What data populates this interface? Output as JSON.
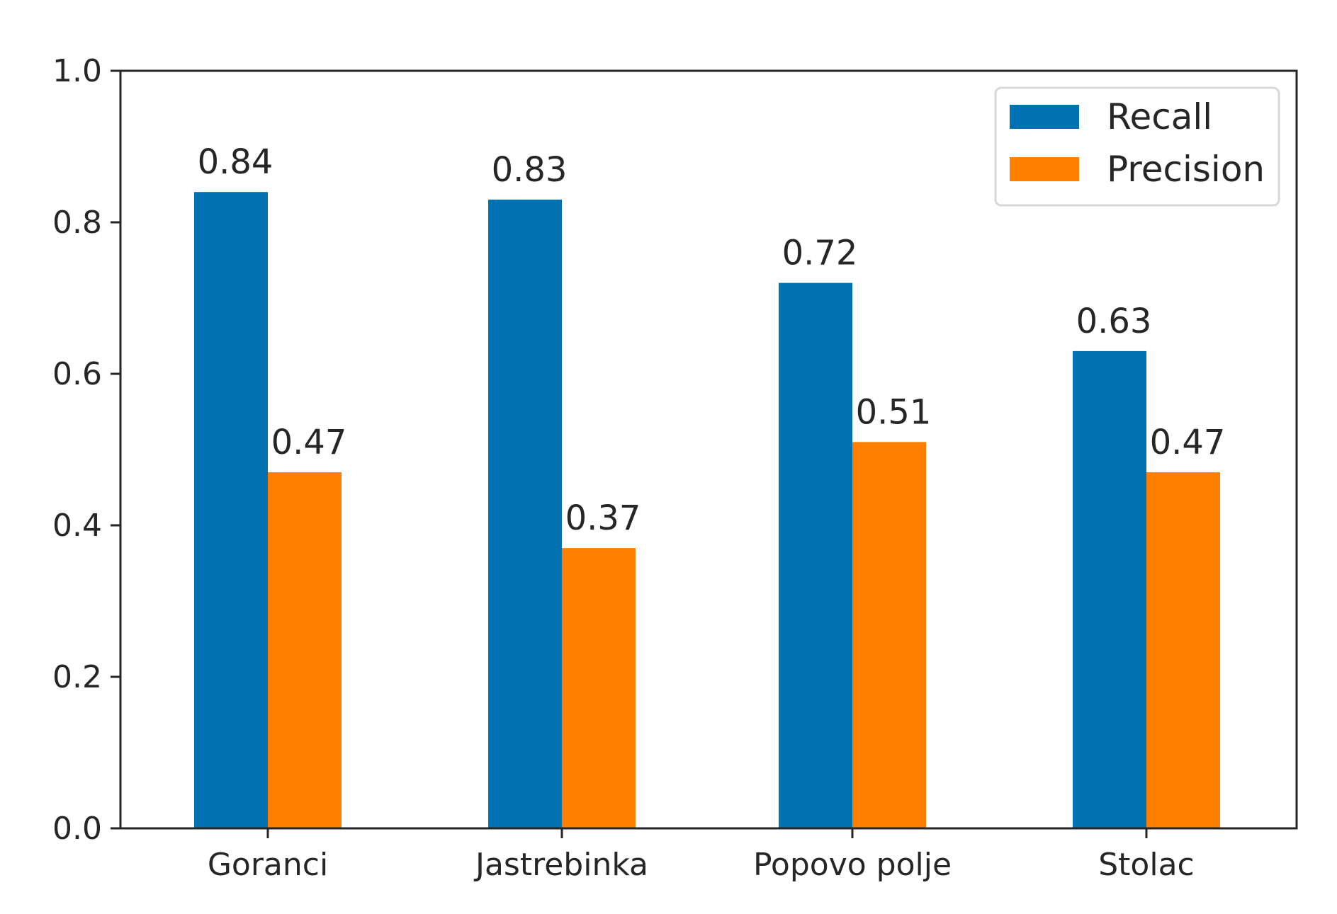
{
  "chart_data": {
    "type": "bar",
    "title": "",
    "xlabel": "",
    "ylabel": "",
    "categories": [
      "Goranci",
      "Jastrebinka",
      "Popovo polje",
      "Stolac"
    ],
    "series": [
      {
        "name": "Recall",
        "color": "#0072b2",
        "values": [
          0.84,
          0.83,
          0.72,
          0.63
        ]
      },
      {
        "name": "Precision",
        "color": "#ff7f00",
        "values": [
          0.47,
          0.37,
          0.51,
          0.47
        ]
      }
    ],
    "data_labels": [
      [
        "0.84",
        "0.83",
        "0.72",
        "0.63"
      ],
      [
        "0.47",
        "0.37",
        "0.51",
        "0.47"
      ]
    ],
    "ylim": [
      0,
      1.0
    ],
    "yticks": [
      0.0,
      0.2,
      0.4,
      0.6,
      0.8,
      1.0
    ],
    "ytick_labels": [
      "0.0",
      "0.2",
      "0.4",
      "0.6",
      "0.8",
      "1.0"
    ],
    "grid": false,
    "legend_position": "top-right"
  }
}
